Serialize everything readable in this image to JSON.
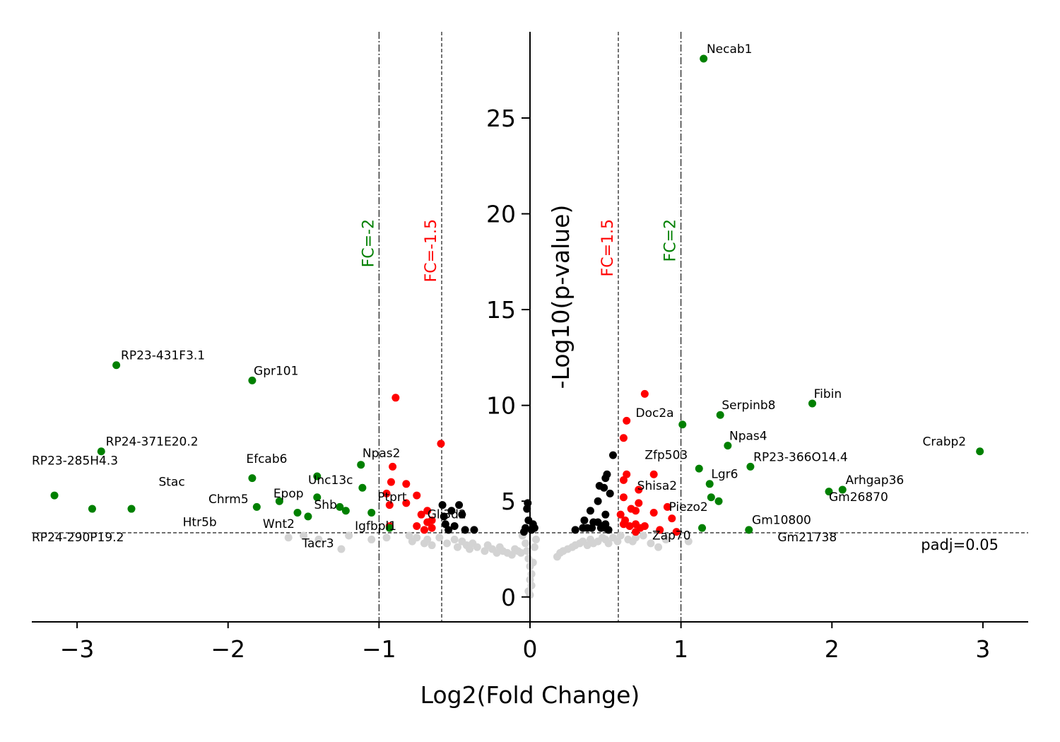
{
  "chart_data": {
    "type": "scatter",
    "title": "",
    "xlabel": "Log2(Fold Change)",
    "ylabel": "-Log10(p-value)",
    "xlim": [
      -3.3,
      3.3
    ],
    "ylim": [
      -1.3,
      29.5
    ],
    "xticks": [
      -3,
      -2,
      -1,
      0,
      1,
      2,
      3
    ],
    "yticks": [
      0,
      5,
      10,
      15,
      20,
      25
    ],
    "colors": {
      "not_significant": "#d3d3d3",
      "significant": "#000000",
      "fc_1_5": "#ff0000",
      "fc_2": "#008000"
    },
    "thresholds": {
      "padj_line_y": 3.35,
      "padj_label": "padj=0.05",
      "vertical_lines": [
        {
          "x": -1.0,
          "label": "FC=-2",
          "color": "#008000",
          "style": "dashdot"
        },
        {
          "x": -0.585,
          "label": "FC=-1.5",
          "color": "#ff0000",
          "style": "dashed"
        },
        {
          "x": 0.585,
          "label": "FC=1.5",
          "color": "#ff0000",
          "style": "dashed"
        },
        {
          "x": 1.0,
          "label": "FC=2",
          "color": "#008000",
          "style": "dashdot"
        }
      ]
    },
    "series": [
      {
        "group": "not_significant",
        "points": [
          [
            -1.6,
            3.1
          ],
          [
            -1.5,
            3.2
          ],
          [
            -1.4,
            3.0
          ],
          [
            -1.25,
            2.5
          ],
          [
            -1.2,
            3.2
          ],
          [
            -1.05,
            3.0
          ],
          [
            -0.95,
            3.1
          ],
          [
            -0.8,
            3.2
          ],
          [
            -0.78,
            2.9
          ],
          [
            -0.75,
            3.1
          ],
          [
            -0.7,
            2.8
          ],
          [
            -0.68,
            3.0
          ],
          [
            -0.65,
            2.7
          ],
          [
            -0.6,
            3.1
          ],
          [
            -0.55,
            2.8
          ],
          [
            -0.5,
            3.0
          ],
          [
            -0.48,
            2.6
          ],
          [
            -0.45,
            2.9
          ],
          [
            -0.42,
            2.7
          ],
          [
            -0.4,
            2.5
          ],
          [
            -0.38,
            2.8
          ],
          [
            -0.35,
            2.6
          ],
          [
            -0.3,
            2.4
          ],
          [
            -0.28,
            2.7
          ],
          [
            -0.25,
            2.5
          ],
          [
            -0.22,
            2.3
          ],
          [
            -0.2,
            2.6
          ],
          [
            -0.18,
            2.4
          ],
          [
            -0.15,
            2.3
          ],
          [
            -0.12,
            2.2
          ],
          [
            -0.1,
            2.5
          ],
          [
            -0.08,
            2.4
          ],
          [
            -0.06,
            2.3
          ],
          [
            -0.05,
            3.2
          ],
          [
            -0.03,
            2.8
          ],
          [
            -0.02,
            2.4
          ],
          [
            -0.01,
            2.0
          ],
          [
            0.0,
            1.6
          ],
          [
            0.01,
            1.2
          ],
          [
            0.0,
            0.9
          ],
          [
            0.01,
            0.6
          ],
          [
            -0.01,
            0.3
          ],
          [
            0.0,
            0.1
          ],
          [
            0.02,
            1.8
          ],
          [
            0.03,
            2.6
          ],
          [
            0.04,
            3.0
          ],
          [
            0.18,
            2.1
          ],
          [
            0.2,
            2.3
          ],
          [
            0.22,
            2.4
          ],
          [
            0.25,
            2.5
          ],
          [
            0.28,
            2.6
          ],
          [
            0.3,
            2.7
          ],
          [
            0.33,
            2.8
          ],
          [
            0.35,
            2.9
          ],
          [
            0.38,
            2.7
          ],
          [
            0.4,
            3.0
          ],
          [
            0.42,
            2.8
          ],
          [
            0.45,
            2.9
          ],
          [
            0.48,
            3.1
          ],
          [
            0.5,
            3.0
          ],
          [
            0.52,
            2.8
          ],
          [
            0.55,
            3.1
          ],
          [
            0.58,
            2.9
          ],
          [
            0.6,
            3.2
          ],
          [
            0.65,
            3.0
          ],
          [
            0.68,
            2.9
          ],
          [
            0.7,
            3.1
          ],
          [
            0.75,
            3.2
          ],
          [
            0.8,
            2.8
          ],
          [
            0.85,
            2.6
          ],
          [
            0.9,
            3.0
          ],
          [
            1.05,
            2.9
          ]
        ]
      },
      {
        "group": "significant",
        "points": [
          [
            -0.58,
            4.8
          ],
          [
            -0.57,
            4.2
          ],
          [
            -0.56,
            3.8
          ],
          [
            -0.54,
            3.5
          ],
          [
            -0.52,
            4.5
          ],
          [
            -0.5,
            3.7
          ],
          [
            -0.47,
            4.8
          ],
          [
            -0.45,
            4.3
          ],
          [
            -0.43,
            3.5
          ],
          [
            -0.37,
            3.5
          ],
          [
            -0.03,
            3.6
          ],
          [
            -0.02,
            4.6
          ],
          [
            -0.01,
            4.0
          ],
          [
            -0.015,
            4.9
          ],
          [
            0.01,
            3.5
          ],
          [
            0.02,
            3.8
          ],
          [
            0.03,
            3.6
          ],
          [
            -0.04,
            3.4
          ],
          [
            0.3,
            3.5
          ],
          [
            0.35,
            3.6
          ],
          [
            0.36,
            4.0
          ],
          [
            0.38,
            3.6
          ],
          [
            0.4,
            4.5
          ],
          [
            0.41,
            3.6
          ],
          [
            0.42,
            3.9
          ],
          [
            0.45,
            5.0
          ],
          [
            0.45,
            3.9
          ],
          [
            0.46,
            5.8
          ],
          [
            0.47,
            3.6
          ],
          [
            0.48,
            3.7
          ],
          [
            0.49,
            5.7
          ],
          [
            0.5,
            6.2
          ],
          [
            0.5,
            3.8
          ],
          [
            0.5,
            4.3
          ],
          [
            0.51,
            6.4
          ],
          [
            0.52,
            3.5
          ],
          [
            0.53,
            5.4
          ],
          [
            0.55,
            7.4
          ],
          [
            0.5,
            3.6
          ]
        ]
      },
      {
        "group": "fc_1_5",
        "points": [
          [
            -0.89,
            10.4
          ],
          [
            -0.59,
            8.0
          ],
          [
            -0.91,
            6.8
          ],
          [
            -0.92,
            6.0
          ],
          [
            -0.82,
            5.9
          ],
          [
            -0.95,
            5.4
          ],
          [
            -0.75,
            5.3
          ],
          [
            -0.82,
            4.9
          ],
          [
            -0.93,
            4.8
          ],
          [
            -0.68,
            4.5
          ],
          [
            -0.72,
            4.3
          ],
          [
            -0.68,
            3.9
          ],
          [
            -0.75,
            3.7
          ],
          [
            -0.65,
            3.6
          ],
          [
            -0.7,
            3.5
          ],
          [
            -0.65,
            4.0
          ],
          [
            -0.93,
            3.7
          ],
          [
            0.76,
            10.6
          ],
          [
            0.64,
            9.2
          ],
          [
            0.62,
            8.3
          ],
          [
            0.64,
            6.4
          ],
          [
            0.82,
            6.4
          ],
          [
            0.62,
            6.1
          ],
          [
            0.72,
            5.6
          ],
          [
            0.62,
            5.2
          ],
          [
            0.72,
            4.9
          ],
          [
            0.67,
            4.6
          ],
          [
            0.7,
            4.5
          ],
          [
            0.82,
            4.4
          ],
          [
            0.91,
            4.7
          ],
          [
            0.6,
            4.3
          ],
          [
            0.94,
            4.1
          ],
          [
            0.63,
            4.0
          ],
          [
            0.66,
            3.7
          ],
          [
            0.7,
            3.8
          ],
          [
            0.73,
            3.6
          ],
          [
            0.76,
            3.7
          ],
          [
            0.86,
            3.5
          ],
          [
            0.7,
            3.4
          ],
          [
            0.97,
            3.4
          ],
          [
            0.62,
            3.8
          ]
        ]
      },
      {
        "group": "fc_2",
        "points": [
          [
            -3.15,
            5.3
          ],
          [
            -2.9,
            4.6
          ],
          [
            -2.64,
            4.6
          ],
          [
            -2.74,
            12.1
          ],
          [
            -2.84,
            7.6
          ],
          [
            -1.84,
            11.3
          ],
          [
            -1.84,
            6.2
          ],
          [
            -1.81,
            4.7
          ],
          [
            -1.66,
            5.0
          ],
          [
            -1.54,
            4.4
          ],
          [
            -1.47,
            4.2
          ],
          [
            -1.41,
            6.3
          ],
          [
            -1.41,
            5.2
          ],
          [
            -1.26,
            4.7
          ],
          [
            -1.22,
            4.5
          ],
          [
            -1.12,
            6.9
          ],
          [
            -1.11,
            5.7
          ],
          [
            -1.05,
            4.4
          ],
          [
            -0.93,
            3.6
          ],
          [
            1.15,
            28.1
          ],
          [
            1.01,
            9.0
          ],
          [
            1.26,
            9.5
          ],
          [
            1.31,
            7.9
          ],
          [
            1.12,
            6.7
          ],
          [
            1.19,
            5.9
          ],
          [
            1.2,
            5.2
          ],
          [
            1.25,
            5.0
          ],
          [
            1.46,
            6.8
          ],
          [
            1.87,
            10.1
          ],
          [
            1.98,
            5.5
          ],
          [
            2.07,
            5.6
          ],
          [
            2.98,
            7.6
          ],
          [
            1.14,
            3.6
          ],
          [
            1.45,
            3.5
          ]
        ]
      }
    ],
    "annotations": [
      {
        "text": "RP23-431F3.1",
        "x": -2.71,
        "y": 12.4
      },
      {
        "text": "Gpr101",
        "x": -1.83,
        "y": 11.6
      },
      {
        "text": "RP24-371E20.2",
        "x": -2.81,
        "y": 7.9
      },
      {
        "text": "RP23-285H4.3",
        "x": -3.3,
        "y": 6.9
      },
      {
        "text": "Stac",
        "x": -2.46,
        "y": 5.8
      },
      {
        "text": "Efcab6",
        "x": -1.88,
        "y": 7.0
      },
      {
        "text": "Chrm5",
        "x": -2.13,
        "y": 4.9
      },
      {
        "text": "Epop",
        "x": -1.7,
        "y": 5.2
      },
      {
        "text": "Unc13c",
        "x": -1.47,
        "y": 5.9
      },
      {
        "text": "Shb",
        "x": -1.43,
        "y": 4.6
      },
      {
        "text": "Npas2",
        "x": -1.11,
        "y": 7.3
      },
      {
        "text": "Ptprt",
        "x": -1.01,
        "y": 5.0
      },
      {
        "text": "Htr5b",
        "x": -2.3,
        "y": 3.7
      },
      {
        "text": "Wnt2",
        "x": -1.77,
        "y": 3.6
      },
      {
        "text": "Igfbpl1",
        "x": -1.16,
        "y": 3.5
      },
      {
        "text": "Tacr3",
        "x": -1.51,
        "y": 2.6
      },
      {
        "text": "Gli3d2",
        "x": -0.68,
        "y": 4.1
      },
      {
        "text": "RP24-290P19.2",
        "x": -3.3,
        "y": 2.9
      },
      {
        "text": "Necab1",
        "x": 1.17,
        "y": 28.4
      },
      {
        "text": "Doc2a",
        "x": 0.7,
        "y": 9.4
      },
      {
        "text": "Zfp503",
        "x": 0.76,
        "y": 7.2
      },
      {
        "text": "Shisa2",
        "x": 0.71,
        "y": 5.6
      },
      {
        "text": "Piezo2",
        "x": 0.92,
        "y": 4.5
      },
      {
        "text": "Zap70",
        "x": 0.81,
        "y": 3.0
      },
      {
        "text": "Serpinb8",
        "x": 1.27,
        "y": 9.8
      },
      {
        "text": "Npas4",
        "x": 1.32,
        "y": 8.2
      },
      {
        "text": "RP23-366O14.4",
        "x": 1.48,
        "y": 7.1
      },
      {
        "text": "Lgr6",
        "x": 1.2,
        "y": 6.2
      },
      {
        "text": "Fibin",
        "x": 1.88,
        "y": 10.4
      },
      {
        "text": "Crabp2",
        "x": 2.6,
        "y": 7.9
      },
      {
        "text": "Arhgap36",
        "x": 2.09,
        "y": 5.9
      },
      {
        "text": "Gm26870",
        "x": 1.98,
        "y": 5.0
      },
      {
        "text": "Gm10800",
        "x": 1.47,
        "y": 3.8
      },
      {
        "text": "Gm21738",
        "x": 1.64,
        "y": 2.9
      }
    ]
  }
}
